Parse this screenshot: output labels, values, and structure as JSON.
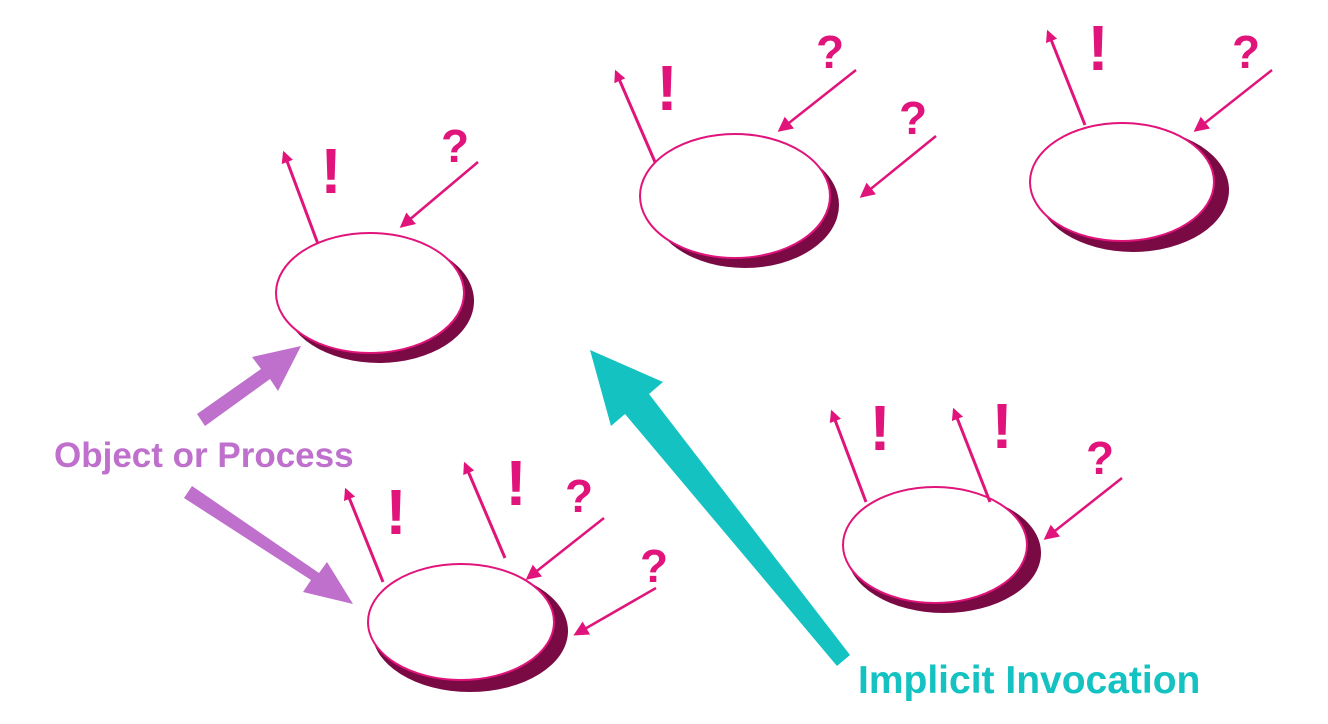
{
  "colors": {
    "magenta": "#e0147a",
    "shadow": "#7a0a44",
    "violet": "#bf6fcc",
    "teal": "#14c2c2",
    "background": "#ffffff"
  },
  "labels": {
    "object_or_process": "Object or Process",
    "implicit_invocation": "Implicit Invocation"
  },
  "symbols": {
    "announce": "!",
    "query": "?"
  }
}
